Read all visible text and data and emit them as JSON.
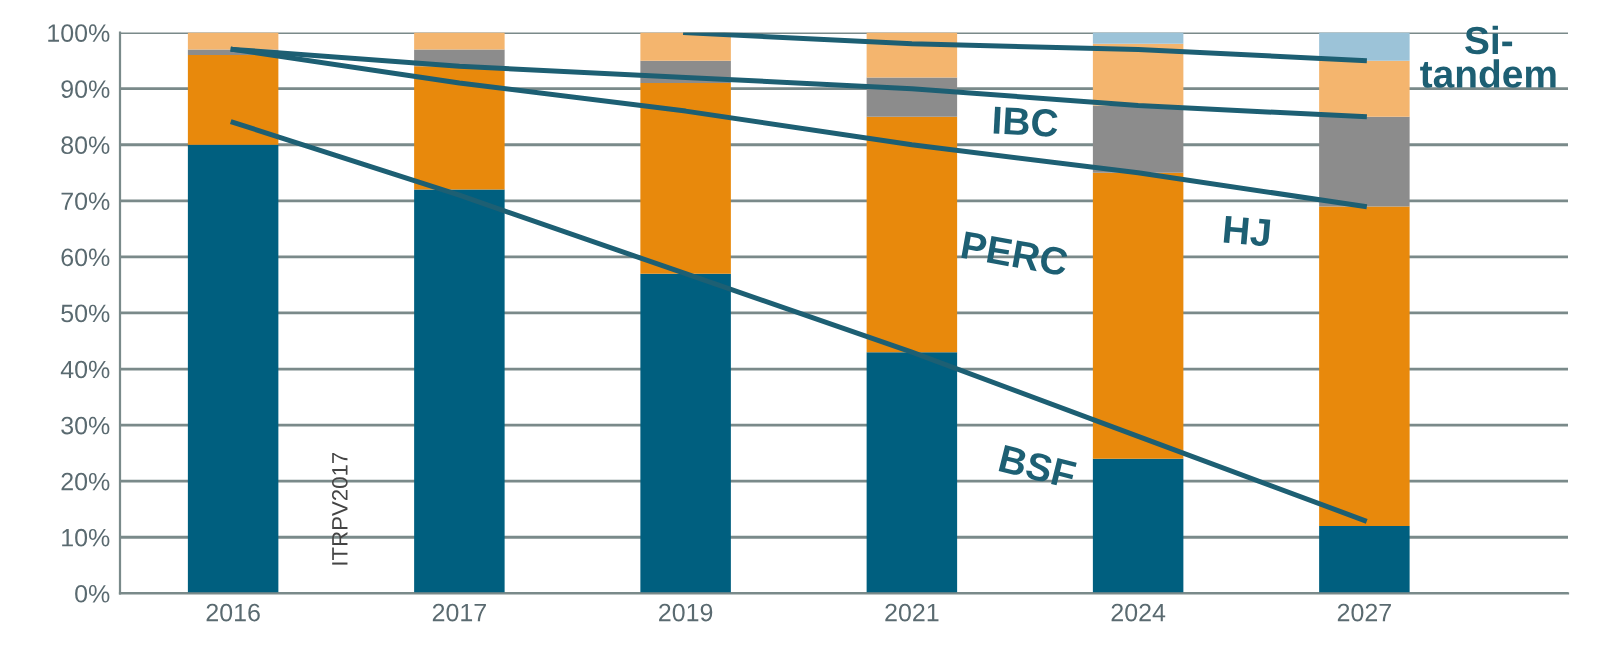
{
  "chart_data": {
    "type": "bar",
    "stacked": true,
    "categories": [
      "2016",
      "2017",
      "2019",
      "2021",
      "2024",
      "2027"
    ],
    "series": [
      {
        "name": "BSF",
        "color": "#005f7f",
        "values": [
          80,
          72,
          57,
          43,
          24,
          12
        ]
      },
      {
        "name": "PERC",
        "color": "#e8890c",
        "values": [
          16,
          22,
          34,
          42,
          51,
          57
        ]
      },
      {
        "name": "HJ",
        "color": "#8c8c8c",
        "values": [
          1,
          3,
          4,
          7,
          12,
          16
        ]
      },
      {
        "name": "IBC",
        "color": "#f4b56e",
        "values": [
          3,
          3,
          5,
          8,
          11,
          10
        ]
      },
      {
        "name": "Si-\ntandem",
        "color": "#9cc3d8",
        "values": [
          0,
          0,
          0,
          0,
          2,
          5
        ]
      },
      {
        "type": "line",
        "color": "#1d5f73",
        "values": [
          84,
          71,
          57,
          43,
          28,
          13
        ]
      },
      {
        "type": "line",
        "color": "#1d5f73",
        "values": [
          97,
          91,
          86,
          80,
          75,
          69
        ]
      },
      {
        "type": "line",
        "color": "#1d5f73",
        "values": [
          97,
          94,
          92,
          90,
          87,
          85
        ]
      },
      {
        "type": "line",
        "color": "#1d5f73",
        "values": [
          null,
          null,
          100,
          98,
          97,
          95
        ]
      }
    ],
    "ylim": [
      0,
      100
    ],
    "yticks": [
      {
        "value": 0,
        "label": "0%"
      },
      {
        "value": 10,
        "label": "10%"
      },
      {
        "value": 20,
        "label": "20%"
      },
      {
        "value": 30,
        "label": "30%"
      },
      {
        "value": 40,
        "label": "40%"
      },
      {
        "value": 50,
        "label": "50%"
      },
      {
        "value": 60,
        "label": "60%"
      },
      {
        "value": 70,
        "label": "70%"
      },
      {
        "value": 80,
        "label": "80%"
      },
      {
        "value": 90,
        "label": "90%"
      },
      {
        "value": 100,
        "label": "100%"
      }
    ],
    "grid": "y",
    "annotations": [
      "ITRPV2017"
    ]
  }
}
